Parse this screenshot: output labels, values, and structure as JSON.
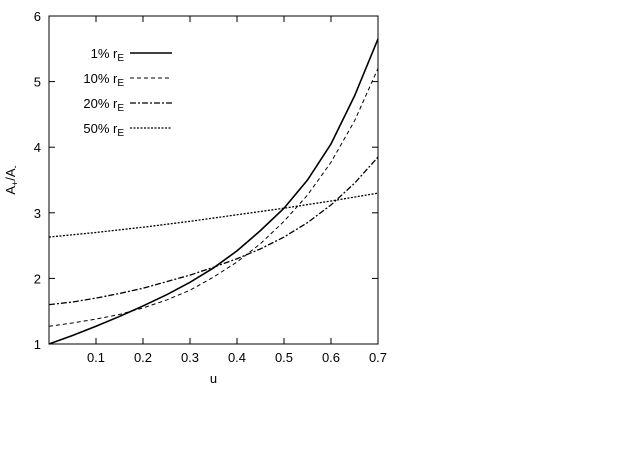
{
  "chart_data": {
    "type": "line",
    "xlabel": "u",
    "ylabel": "A+/A-",
    "ylabel_main": "A",
    "ylabel_sub1": "+",
    "ylabel_mid": "/A",
    "ylabel_sub2": "-",
    "xlim": [
      0,
      0.7
    ],
    "ylim": [
      1,
      6
    ],
    "xticks": [
      0.1,
      0.2,
      0.3,
      0.4,
      0.5,
      0.6,
      0.7
    ],
    "yticks": [
      1,
      2,
      3,
      4,
      5,
      6
    ],
    "grid": false,
    "legend_position": "top-left",
    "series": [
      {
        "name": "1% r_E",
        "label_main": "1% r",
        "label_sub": "E",
        "style": "solid",
        "x": [
          0,
          0.05,
          0.1,
          0.15,
          0.2,
          0.25,
          0.3,
          0.35,
          0.4,
          0.45,
          0.5,
          0.55,
          0.6,
          0.65,
          0.7
        ],
        "y": [
          1.0,
          1.13,
          1.27,
          1.42,
          1.58,
          1.75,
          1.94,
          2.16,
          2.42,
          2.73,
          3.07,
          3.5,
          4.05,
          4.78,
          5.65
        ]
      },
      {
        "name": "10% r_E",
        "label_main": "10% r",
        "label_sub": "E",
        "style": "dashed-fine",
        "x": [
          0,
          0.05,
          0.1,
          0.15,
          0.2,
          0.25,
          0.3,
          0.35,
          0.4,
          0.45,
          0.5,
          0.55,
          0.6,
          0.65,
          0.7
        ],
        "y": [
          1.27,
          1.32,
          1.38,
          1.45,
          1.55,
          1.67,
          1.82,
          2.02,
          2.25,
          2.53,
          2.87,
          3.27,
          3.77,
          4.4,
          5.2
        ]
      },
      {
        "name": "20% r_E",
        "label_main": "20% r",
        "label_sub": "E",
        "style": "dash-dot",
        "x": [
          0,
          0.05,
          0.1,
          0.15,
          0.2,
          0.25,
          0.3,
          0.35,
          0.4,
          0.45,
          0.5,
          0.55,
          0.6,
          0.65,
          0.7
        ],
        "y": [
          1.6,
          1.64,
          1.7,
          1.77,
          1.85,
          1.95,
          2.05,
          2.17,
          2.3,
          2.45,
          2.63,
          2.85,
          3.12,
          3.45,
          3.85
        ]
      },
      {
        "name": "50% r_E",
        "label_main": "50% r",
        "label_sub": "E",
        "style": "dotted-dense",
        "x": [
          0,
          0.1,
          0.2,
          0.3,
          0.4,
          0.5,
          0.6,
          0.7
        ],
        "y": [
          2.63,
          2.7,
          2.78,
          2.87,
          2.97,
          3.07,
          3.18,
          3.3
        ]
      }
    ]
  }
}
